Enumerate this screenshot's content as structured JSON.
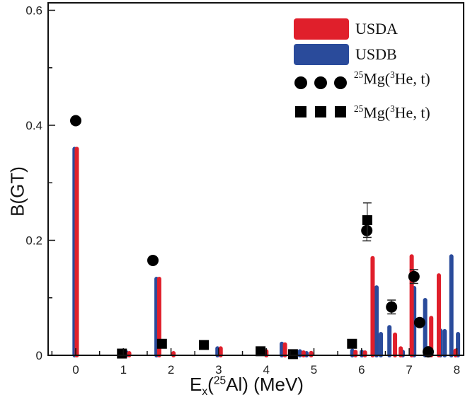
{
  "chart_data": {
    "type": "bar",
    "title": "",
    "ylabel": "B(GT)",
    "xlabel_parts": {
      "main": "E",
      "sub": "x",
      "open": "(",
      "sup": "25",
      "rest": "Al) (MeV)"
    },
    "xlim": [
      -0.55,
      8.15
    ],
    "ylim": [
      0,
      0.6
    ],
    "xticks": [
      "0",
      "1",
      "2",
      "3",
      "4",
      "5",
      "6",
      "7",
      "8"
    ],
    "yticks": [
      "0",
      "0.2",
      "0.4",
      "0.6"
    ],
    "legend_placement": "top-right",
    "legend": {
      "usda": "USDA",
      "usdb": "USDB",
      "circles": {
        "sup1": "25",
        "a": "Mg(",
        "sup2": "3",
        "b": "He, t)"
      },
      "squares": {
        "sup1": "25",
        "a": "Mg(",
        "sup2": "3",
        "b": "He, t)"
      }
    },
    "colors": {
      "usda": "#e01f2b",
      "usdb": "#2a4b9b",
      "data": "#000000"
    },
    "series": [
      {
        "name": "USDA",
        "type": "bar",
        "x": [
          0.0,
          1.1,
          1.73,
          2.03,
          3.02,
          3.98,
          4.37,
          4.76,
          4.92,
          5.85,
          6.05,
          6.21,
          6.68,
          6.8,
          7.03,
          7.44,
          7.6,
          7.95
        ],
        "y": [
          0.359,
          0.003,
          0.133,
          0.003,
          0.012,
          0.007,
          0.019,
          0.005,
          0.004,
          0.006,
          0.005,
          0.169,
          0.036,
          0.012,
          0.172,
          0.065,
          0.139,
          0.008
        ]
      },
      {
        "name": "USDB",
        "type": "bar",
        "x": [
          -0.01,
          1.08,
          1.71,
          2.99,
          4.34,
          4.72,
          4.86,
          5.82,
          6.02,
          6.33,
          6.42,
          6.6,
          6.88,
          7.12,
          7.35,
          7.67,
          7.76,
          7.9,
          8.04
        ],
        "y": [
          0.359,
          0.005,
          0.133,
          0.012,
          0.02,
          0.007,
          0.003,
          0.008,
          0.006,
          0.118,
          0.037,
          0.049,
          0.006,
          0.117,
          0.096,
          0.043,
          0.042,
          0.172,
          0.037
        ]
      },
      {
        "name": "25Mg(3He, t) circles",
        "type": "scatter",
        "marker": "circle",
        "x": [
          0.0,
          1.62,
          6.11,
          6.63,
          7.1,
          7.22,
          7.4
        ],
        "y": [
          0.408,
          0.165,
          0.217,
          0.084,
          0.137,
          0.057,
          0.006
        ],
        "err": [
          0,
          0,
          0.018,
          0.012,
          0.012,
          0,
          0
        ]
      },
      {
        "name": "25Mg(3He, t) squares",
        "type": "scatter",
        "marker": "square",
        "x": [
          0.97,
          1.81,
          2.69,
          3.88,
          4.56,
          5.8,
          6.12
        ],
        "y": [
          0.003,
          0.02,
          0.018,
          0.007,
          0.002,
          0.02,
          0.235
        ],
        "err": [
          0,
          0,
          0,
          0,
          0,
          0,
          0.03
        ]
      }
    ]
  }
}
